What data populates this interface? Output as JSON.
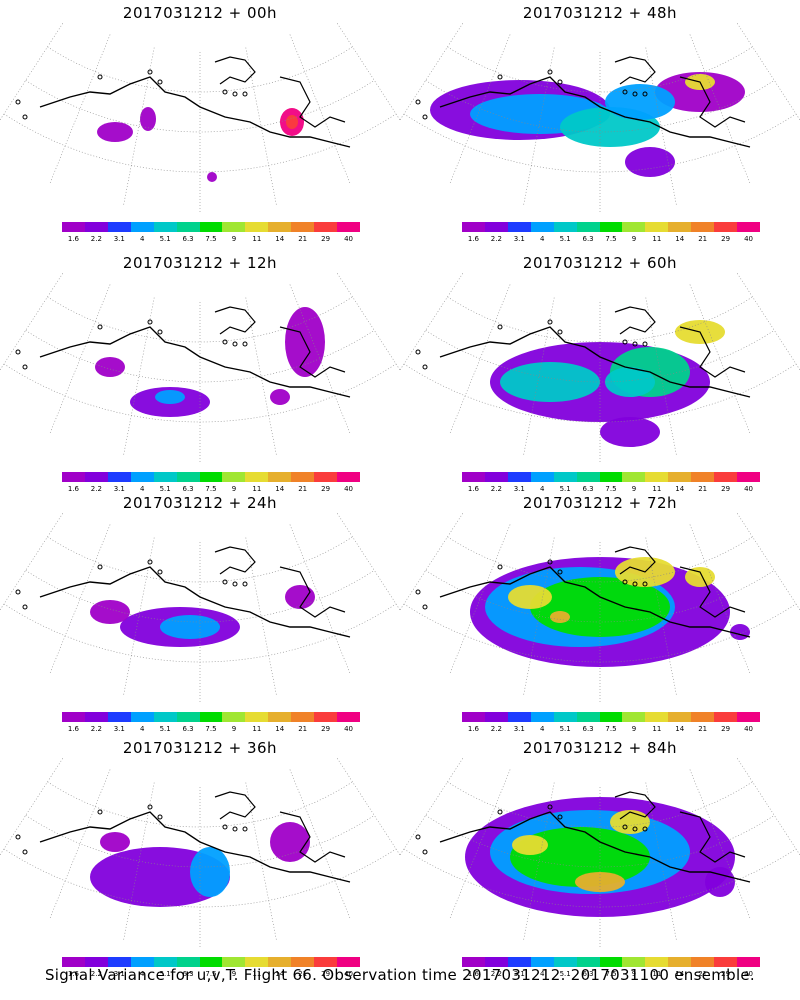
{
  "panels": [
    {
      "title": "2017031212 + 00h"
    },
    {
      "title": "2017031212 + 48h"
    },
    {
      "title": "2017031212 + 12h"
    },
    {
      "title": "2017031212 + 60h"
    },
    {
      "title": "2017031212 + 24h"
    },
    {
      "title": "2017031212 + 72h"
    },
    {
      "title": "2017031212 + 36h"
    },
    {
      "title": "2017031212 + 84h"
    }
  ],
  "colorbar": {
    "levels": [
      "1.6",
      "2.2",
      "3.1",
      "4",
      "5.1",
      "6.3",
      "7.5",
      "9",
      "11",
      "14",
      "21",
      "29",
      "40"
    ],
    "colors": [
      "#a000c8",
      "#8200dc",
      "#1e3cff",
      "#00a0ff",
      "#00c8c8",
      "#00d28c",
      "#00dc00",
      "#a0e632",
      "#e6dc32",
      "#e6af2d",
      "#f08228",
      "#fa3c3c",
      "#f00082"
    ]
  },
  "footer": "Signal Variance for u,v,T. Flight 66. Observation time 2017031212. 2017031100 ensemble."
}
